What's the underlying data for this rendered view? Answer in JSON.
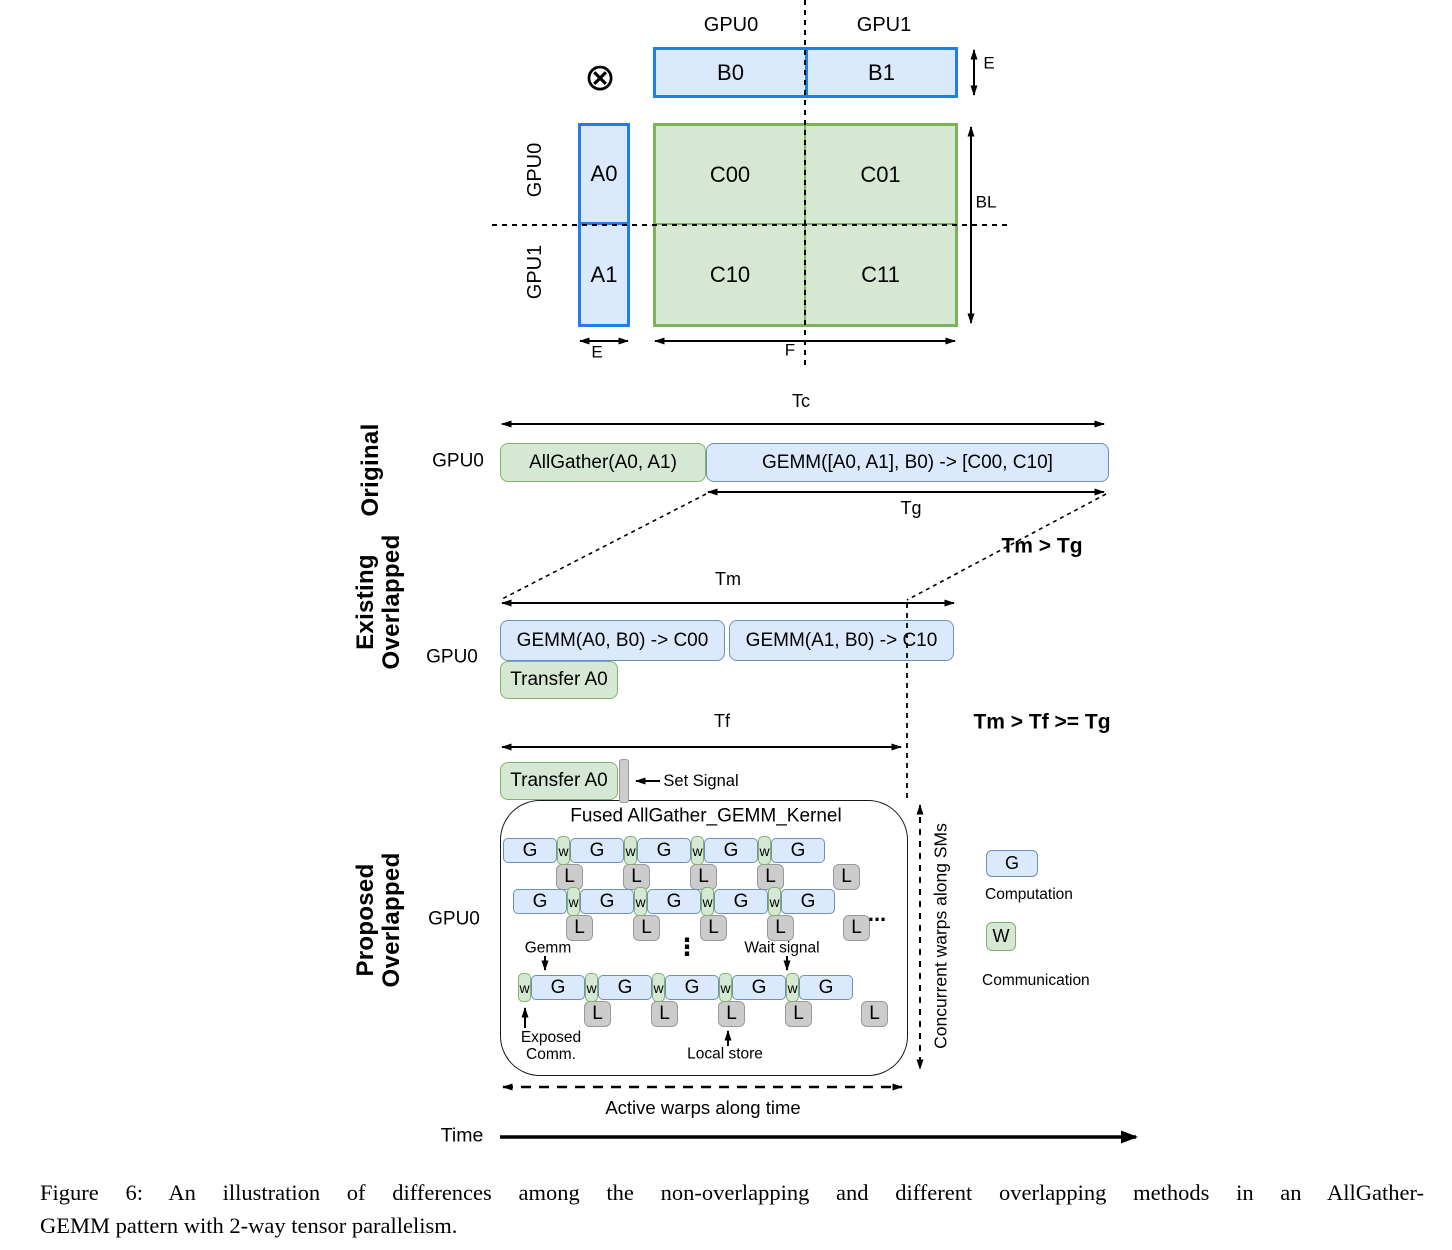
{
  "matrix": {
    "otimes": "⊗",
    "col_gpu0": "GPU0",
    "col_gpu1": "GPU1",
    "row_gpu0": "GPU0",
    "row_gpu1": "GPU1",
    "b0": "B0",
    "b1": "B1",
    "a0": "A0",
    "a1": "A1",
    "c00": "C00",
    "c01": "C01",
    "c10": "C10",
    "c11": "C11",
    "dim_e_top": "E",
    "dim_bl": "BL",
    "dim_e_bottom": "E",
    "dim_f": "F"
  },
  "original": {
    "section_label": "Original",
    "gpu_label": "GPU0",
    "tc": "Tc",
    "allgather": "AllGather(A0, A1)",
    "gemm": "GEMM([A0, A1], B0) -> [C00, C10]",
    "tg": "Tg",
    "comparison": "Tm > Tg"
  },
  "existing": {
    "section_label_line1": "Existing",
    "section_label_line2": "Overlapped",
    "gpu_label": "GPU0",
    "tm": "Tm",
    "gemm1": "GEMM(A0, B0) -> C00",
    "gemm2": "GEMM(A1, B0) -> C10",
    "transfer": "Transfer A0",
    "tf": "Tf",
    "comparison": "Tm > Tf >= Tg"
  },
  "proposed": {
    "section_label_line1": "Proposed",
    "section_label_line2": "Overlapped",
    "gpu_label": "GPU0",
    "transfer": "Transfer A0",
    "set_signal": "Set Signal",
    "kernel_title": "Fused AllGather_GEMM_Kernel",
    "l_label": "L",
    "rows": [
      {
        "pattern": [
          "G",
          "w",
          "G",
          "w",
          "G",
          "w",
          "G",
          "w",
          "G"
        ]
      },
      {
        "pattern": [
          "G",
          "w",
          "G",
          "w",
          "G",
          "w",
          "G",
          "w",
          "G"
        ]
      },
      {
        "pattern": [
          "w",
          "G",
          "w",
          "G",
          "w",
          "G",
          "w",
          "G",
          "w",
          "G"
        ]
      }
    ],
    "ellipsis_h": "...",
    "ellipsis_v": "⋮",
    "gemm_note": "Gemm",
    "wait_note": "Wait signal",
    "exposed_note_line1": "Exposed",
    "exposed_note_line2": "Comm.",
    "local_store_note": "Local store",
    "concurrent_label": "Concurrent warps along SMs",
    "active_label": "Active warps along time"
  },
  "legend": {
    "g": "G",
    "g_desc": "Computation",
    "w": "W",
    "w_desc": "Communication"
  },
  "time_label": "Time",
  "caption": {
    "line1": "Figure 6: An illustration of differences among the non-overlapping and different overlapping methods in an AllGather-",
    "line2": "GEMM pattern with 2-way tensor parallelism."
  },
  "colors": {
    "blue_fill": "#dbe9fc",
    "blue_border_strong": "#1f7fe8",
    "blue_border_soft": "#6c8ebf",
    "green_fill": "#d5e8d4",
    "green_border": "#82b366",
    "matrix_green_border": "#7cb25a",
    "gray_fill": "#cccccc",
    "gray_border": "#999999"
  }
}
